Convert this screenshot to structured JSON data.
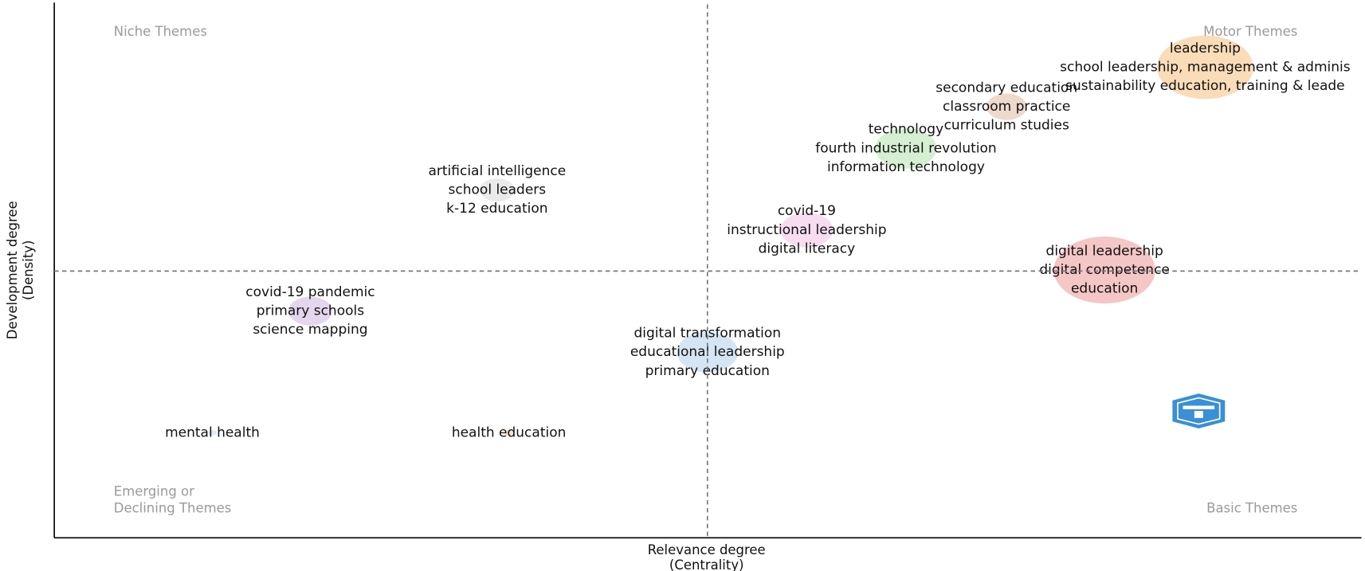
{
  "chart_data": {
    "type": "bubble",
    "x_title": [
      "Relevance degree",
      "(Centrality)"
    ],
    "y_title": [
      "Development degree",
      "(Density)"
    ],
    "quadrants": {
      "top_left": [
        "Niche Themes"
      ],
      "top_right": [
        "Motor Themes"
      ],
      "bottom_left": [
        "Emerging or",
        "Declining Themes"
      ],
      "bottom_right": [
        "Basic Themes"
      ]
    },
    "xlim": [
      0,
      1
    ],
    "ylim": [
      0,
      1
    ],
    "x_reference": 0.5,
    "y_reference": 0.5,
    "series": [
      {
        "labels": [
          "leadership",
          "school leadership, management & adminis",
          "sustainability education, training & leade"
        ],
        "color": "#f9d6ad",
        "x": 0.881,
        "y": 0.882,
        "size": 55
      },
      {
        "labels": [
          "secondary education",
          "classroom practice",
          "curriculum studies"
        ],
        "color": "#ead3c4",
        "x": 0.729,
        "y": 0.808,
        "size": 23
      },
      {
        "labels": [
          "technology",
          "fourth industrial revolution",
          "information technology"
        ],
        "color": "#cfeccb",
        "x": 0.652,
        "y": 0.73,
        "size": 35
      },
      {
        "labels": [
          "artificial intelligence",
          "school leaders",
          "k-12 education"
        ],
        "color": "#e6e6e6",
        "x": 0.339,
        "y": 0.652,
        "size": 20
      },
      {
        "labels": [
          "covid-19",
          "instructional leadership",
          "digital literacy"
        ],
        "color": "#f7d6ec",
        "x": 0.576,
        "y": 0.577,
        "size": 30
      },
      {
        "labels": [
          "digital leadership",
          "digital competence",
          "education"
        ],
        "color": "#f3bcbc",
        "x": 0.804,
        "y": 0.502,
        "size": 58
      },
      {
        "labels": [
          "covid-19 pandemic",
          "primary schools",
          "science mapping"
        ],
        "color": "#dfcfea",
        "x": 0.196,
        "y": 0.425,
        "size": 25
      },
      {
        "labels": [
          "digital transformation",
          "educational leadership",
          "primary education"
        ],
        "color": "#cfe0f1",
        "x": 0.5,
        "y": 0.348,
        "size": 35
      },
      {
        "labels": [
          "mental health"
        ],
        "color": "#d9e6f2",
        "x": 0.121,
        "y": 0.197,
        "size": 5
      },
      {
        "labels": [
          "health education"
        ],
        "color": "#f0dcc4",
        "x": 0.348,
        "y": 0.197,
        "size": 5
      }
    ]
  }
}
